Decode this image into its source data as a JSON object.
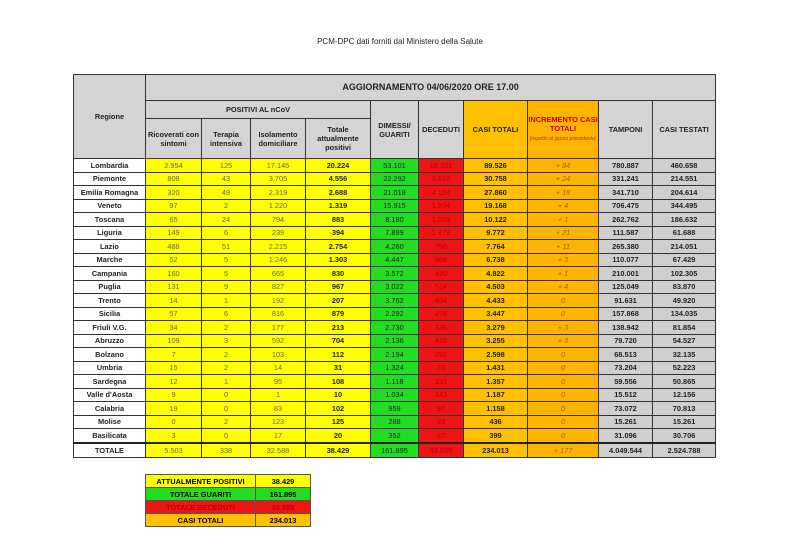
{
  "title": "PCM-DPC dati forniti dal Ministero della Salute",
  "table": {
    "update_header": "AGGIORNAMENTO 04/06/2020 ORE 17.00",
    "region_header": "Regione",
    "positivi_header": "POSITIVI AL nCoV",
    "columns": {
      "ricoverati": "Ricoverati con sintomi",
      "terapia": "Terapia intensiva",
      "isolamento": "Isolamento domiciliare",
      "totale_positivi": "Totale attualmente positivi",
      "dimessi": "DIMESSI/ GUARITI",
      "deceduti": "DECEDUTI",
      "casi_totali": "CASI TOTALI",
      "incremento": "INCREMENTO CASI TOTALI",
      "incremento_note": "(rispetto al giorno precedente)",
      "tamponi": "TAMPONI",
      "casi_testati": "CASI TESTATI"
    },
    "rows": [
      [
        "Lombardia",
        "2.954",
        "125",
        "17.145",
        "20.224",
        "53.101",
        "16.201",
        "89.526",
        "+ 84",
        "780.887",
        "460.658"
      ],
      [
        "Piemonte",
        "808",
        "43",
        "3.705",
        "4.556",
        "22.292",
        "3.910",
        "30.758",
        "+ 24",
        "331.241",
        "214.551"
      ],
      [
        "Emilia Romagna",
        "320",
        "49",
        "2.319",
        "2.688",
        "21.018",
        "4.154",
        "27.860",
        "+ 18",
        "341.710",
        "204.614"
      ],
      [
        "Veneto",
        "97",
        "2",
        "1.220",
        "1.319",
        "15.915",
        "1.934",
        "19.168",
        "+ 4",
        "706.475",
        "344.495"
      ],
      [
        "Toscana",
        "65",
        "24",
        "794",
        "883",
        "8.180",
        "1.059",
        "10.122",
        "+ 1",
        "262.762",
        "186.632"
      ],
      [
        "Liguria",
        "149",
        "6",
        "239",
        "394",
        "7.899",
        "1.479",
        "9.772",
        "+ 21",
        "111.587",
        "61.688"
      ],
      [
        "Lazio",
        "488",
        "51",
        "2.215",
        "2.754",
        "4.260",
        "750",
        "7.764",
        "+ 11",
        "265.380",
        "214.051"
      ],
      [
        "Marche",
        "52",
        "5",
        "1.246",
        "1.303",
        "4.447",
        "988",
        "6.738",
        "+ 3",
        "110.077",
        "67.429"
      ],
      [
        "Campania",
        "160",
        "5",
        "665",
        "830",
        "3.572",
        "420",
        "4.822",
        "+ 1",
        "210.001",
        "102.305"
      ],
      [
        "Puglia",
        "131",
        "9",
        "827",
        "967",
        "3.022",
        "514",
        "4.503",
        "+ 4",
        "125.049",
        "83.870"
      ],
      [
        "Trento",
        "14",
        "1",
        "192",
        "207",
        "3.762",
        "464",
        "4.433",
        "0",
        "91.631",
        "49.920"
      ],
      [
        "Sicilia",
        "57",
        "6",
        "816",
        "879",
        "2.292",
        "276",
        "3.447",
        "0",
        "157.868",
        "134.035"
      ],
      [
        "Friuli V.G.",
        "34",
        "2",
        "177",
        "213",
        "2.730",
        "336",
        "3.279",
        "+ 3",
        "138.942",
        "81.854"
      ],
      [
        "Abruzzo",
        "109",
        "3",
        "592",
        "704",
        "2.136",
        "415",
        "3.255",
        "+ 3",
        "79.720",
        "54.527"
      ],
      [
        "Bolzano",
        "7",
        "2",
        "103",
        "112",
        "2.194",
        "292",
        "2.598",
        "0",
        "68.513",
        "32.135"
      ],
      [
        "Umbria",
        "15",
        "2",
        "14",
        "31",
        "1.324",
        "76",
        "1.431",
        "0",
        "73.204",
        "52.223"
      ],
      [
        "Sardegna",
        "12",
        "1",
        "95",
        "108",
        "1.118",
        "131",
        "1.357",
        "0",
        "59.556",
        "50.865"
      ],
      [
        "Valle d'Aosta",
        "9",
        "0",
        "1",
        "10",
        "1.034",
        "143",
        "1.187",
        "0",
        "15.512",
        "12.156"
      ],
      [
        "Calabria",
        "19",
        "0",
        "83",
        "102",
        "959",
        "97",
        "1.158",
        "0",
        "73.072",
        "70.813"
      ],
      [
        "Molise",
        "0",
        "2",
        "123",
        "125",
        "288",
        "23",
        "436",
        "0",
        "15.261",
        "15.261"
      ],
      [
        "Basilicata",
        "3",
        "0",
        "17",
        "20",
        "352",
        "27",
        "399",
        "0",
        "31.096",
        "30.706"
      ]
    ],
    "total": [
      "TOTALE",
      "5.503",
      "338",
      "32.588",
      "38.429",
      "161.895",
      "33.689",
      "234.013",
      "+ 177",
      "4.049.544",
      "2.524.788"
    ]
  },
  "summary": [
    {
      "label": "ATTUALMENTE POSITIVI",
      "value": "38.429",
      "color": "#ffff00"
    },
    {
      "label": "TOTALE GUARITI",
      "value": "161.895",
      "color": "#22dd22"
    },
    {
      "label": "TOTALE DECEDUTI",
      "value": "33.689",
      "color": "#ee1515"
    },
    {
      "label": "CASI TOTALI",
      "value": "234.013",
      "color": "#ffc000"
    }
  ]
}
